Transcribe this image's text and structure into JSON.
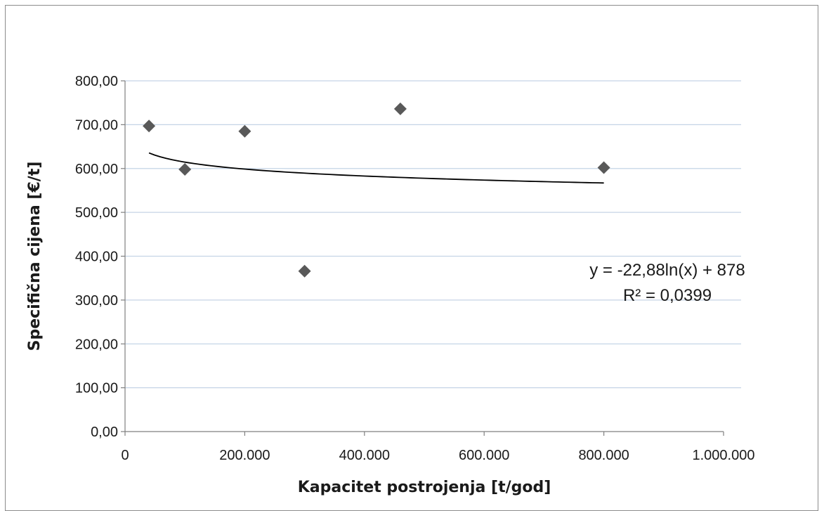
{
  "chart_data": {
    "type": "scatter",
    "title": "",
    "xlabel": "Kapacitet postrojenja [t/god]",
    "ylabel": "Specifična cijena [€/t]",
    "xlim": [
      0,
      1000000
    ],
    "ylim": [
      0,
      800
    ],
    "x_ticks": [
      0,
      200000,
      400000,
      600000,
      800000,
      1000000
    ],
    "x_tick_labels": [
      "0",
      "200.000",
      "400.000",
      "600.000",
      "800.000",
      "1.000.000"
    ],
    "y_ticks": [
      0,
      100,
      200,
      300,
      400,
      500,
      600,
      700,
      800
    ],
    "y_tick_labels": [
      "0,00",
      "100,00",
      "200,00",
      "300,00",
      "400,00",
      "500,00",
      "600,00",
      "700,00",
      "800,00"
    ],
    "grid": "horizontal",
    "marker": "diamond",
    "marker_color": "#595959",
    "gridline_color": "#c5d4e6",
    "trendline_color": "#000000",
    "series": [
      {
        "points": [
          {
            "x": 40000,
            "y": 697
          },
          {
            "x": 100000,
            "y": 598
          },
          {
            "x": 200000,
            "y": 685
          },
          {
            "x": 300000,
            "y": 366
          },
          {
            "x": 460000,
            "y": 736
          },
          {
            "x": 800000,
            "y": 602
          }
        ]
      }
    ],
    "trendline": {
      "type": "logarithmic",
      "a": -22.88,
      "b": 878,
      "x_range": [
        40000,
        800000
      ],
      "equation": "y = -22,88ln(x) + 878",
      "r_squared": "R² = 0,0399"
    }
  }
}
